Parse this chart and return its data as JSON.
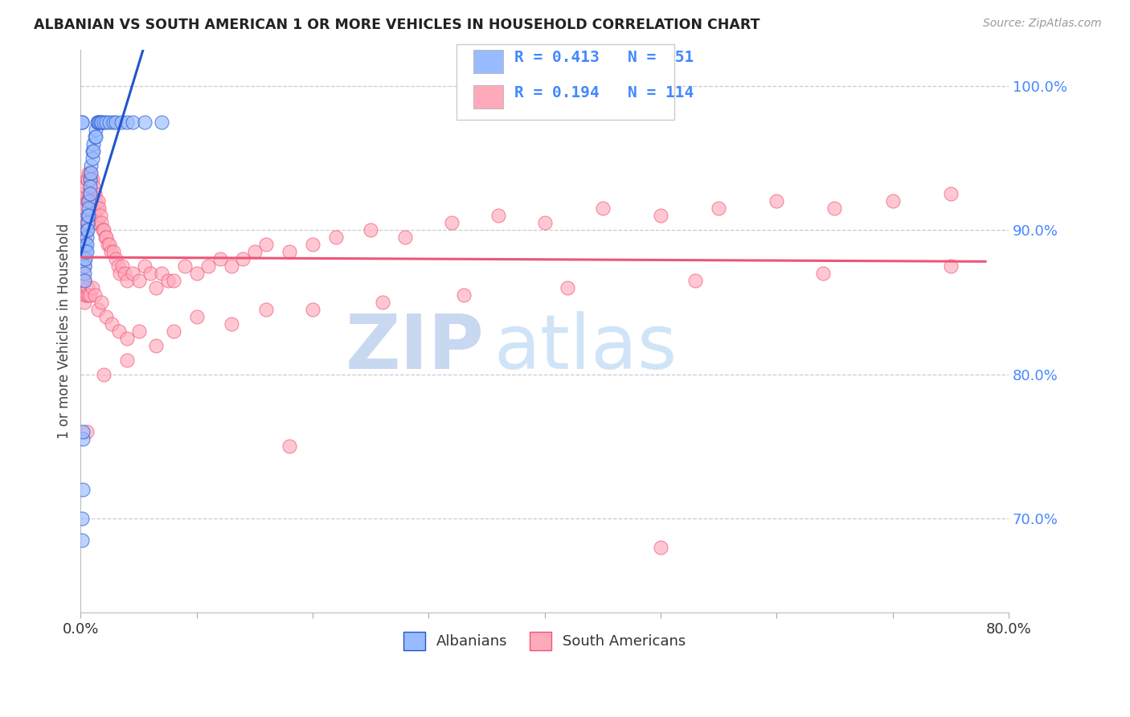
{
  "title": "ALBANIAN VS SOUTH AMERICAN 1 OR MORE VEHICLES IN HOUSEHOLD CORRELATION CHART",
  "source": "Source: ZipAtlas.com",
  "ylabel": "1 or more Vehicles in Household",
  "ytick_labels": [
    "100.0%",
    "90.0%",
    "80.0%",
    "70.0%"
  ],
  "ytick_values": [
    1.0,
    0.9,
    0.8,
    0.7
  ],
  "xlim": [
    0.0,
    0.8
  ],
  "ylim": [
    0.635,
    1.025
  ],
  "r_albanian": 0.413,
  "n_albanian": 51,
  "r_south_american": 0.194,
  "n_south_american": 114,
  "color_albanian": "#99BBFF",
  "color_south_american": "#FFAABB",
  "color_line_albanian": "#2255CC",
  "color_line_south_american": "#EE5577",
  "color_title": "#222222",
  "color_source": "#999999",
  "color_ytick": "#4488FF",
  "albanian_x": [
    0.001,
    0.001,
    0.002,
    0.002,
    0.002,
    0.003,
    0.003,
    0.003,
    0.003,
    0.004,
    0.004,
    0.004,
    0.005,
    0.005,
    0.005,
    0.005,
    0.006,
    0.006,
    0.006,
    0.007,
    0.007,
    0.007,
    0.008,
    0.008,
    0.008,
    0.009,
    0.009,
    0.01,
    0.01,
    0.011,
    0.011,
    0.012,
    0.013,
    0.013,
    0.014,
    0.015,
    0.016,
    0.017,
    0.018,
    0.02,
    0.022,
    0.025,
    0.028,
    0.03,
    0.035,
    0.04,
    0.045,
    0.055,
    0.07,
    0.001,
    0.001
  ],
  "albanian_y": [
    0.7,
    0.685,
    0.755,
    0.72,
    0.76,
    0.88,
    0.875,
    0.87,
    0.865,
    0.89,
    0.885,
    0.88,
    0.9,
    0.895,
    0.89,
    0.885,
    0.91,
    0.905,
    0.9,
    0.92,
    0.915,
    0.91,
    0.935,
    0.93,
    0.925,
    0.945,
    0.94,
    0.955,
    0.95,
    0.96,
    0.955,
    0.965,
    0.97,
    0.965,
    0.975,
    0.975,
    0.975,
    0.975,
    0.975,
    0.975,
    0.975,
    0.975,
    0.975,
    0.975,
    0.975,
    0.975,
    0.975,
    0.975,
    0.975,
    0.975,
    0.975
  ],
  "south_american_x": [
    0.001,
    0.001,
    0.002,
    0.002,
    0.002,
    0.003,
    0.003,
    0.003,
    0.003,
    0.004,
    0.004,
    0.004,
    0.005,
    0.005,
    0.005,
    0.006,
    0.006,
    0.007,
    0.007,
    0.008,
    0.008,
    0.009,
    0.009,
    0.01,
    0.01,
    0.011,
    0.011,
    0.012,
    0.012,
    0.013,
    0.013,
    0.014,
    0.015,
    0.015,
    0.016,
    0.017,
    0.018,
    0.019,
    0.02,
    0.021,
    0.022,
    0.023,
    0.025,
    0.026,
    0.028,
    0.03,
    0.032,
    0.034,
    0.036,
    0.038,
    0.04,
    0.045,
    0.05,
    0.055,
    0.06,
    0.065,
    0.07,
    0.075,
    0.08,
    0.09,
    0.1,
    0.11,
    0.12,
    0.13,
    0.14,
    0.15,
    0.16,
    0.18,
    0.2,
    0.22,
    0.25,
    0.28,
    0.32,
    0.36,
    0.4,
    0.45,
    0.5,
    0.55,
    0.6,
    0.65,
    0.7,
    0.75,
    0.003,
    0.003,
    0.004,
    0.005,
    0.006,
    0.007,
    0.008,
    0.01,
    0.012,
    0.015,
    0.018,
    0.022,
    0.027,
    0.033,
    0.04,
    0.05,
    0.065,
    0.08,
    0.1,
    0.13,
    0.16,
    0.2,
    0.26,
    0.33,
    0.42,
    0.53,
    0.64,
    0.75,
    0.005,
    0.02,
    0.04,
    0.18,
    0.5
  ],
  "south_american_y": [
    0.88,
    0.865,
    0.9,
    0.885,
    0.87,
    0.925,
    0.91,
    0.895,
    0.875,
    0.93,
    0.915,
    0.9,
    0.935,
    0.92,
    0.905,
    0.935,
    0.92,
    0.94,
    0.925,
    0.94,
    0.925,
    0.935,
    0.92,
    0.935,
    0.92,
    0.93,
    0.915,
    0.925,
    0.91,
    0.92,
    0.905,
    0.915,
    0.92,
    0.905,
    0.915,
    0.91,
    0.905,
    0.9,
    0.9,
    0.895,
    0.895,
    0.89,
    0.89,
    0.885,
    0.885,
    0.88,
    0.875,
    0.87,
    0.875,
    0.87,
    0.865,
    0.87,
    0.865,
    0.875,
    0.87,
    0.86,
    0.87,
    0.865,
    0.865,
    0.875,
    0.87,
    0.875,
    0.88,
    0.875,
    0.88,
    0.885,
    0.89,
    0.885,
    0.89,
    0.895,
    0.9,
    0.895,
    0.905,
    0.91,
    0.905,
    0.915,
    0.91,
    0.915,
    0.92,
    0.915,
    0.92,
    0.925,
    0.865,
    0.85,
    0.855,
    0.855,
    0.86,
    0.855,
    0.855,
    0.86,
    0.855,
    0.845,
    0.85,
    0.84,
    0.835,
    0.83,
    0.825,
    0.83,
    0.82,
    0.83,
    0.84,
    0.835,
    0.845,
    0.845,
    0.85,
    0.855,
    0.86,
    0.865,
    0.87,
    0.875,
    0.76,
    0.8,
    0.81,
    0.75,
    0.68
  ],
  "legend_box_color": "#DDDDDD",
  "watermark_zip_color": "#C8D8F0",
  "watermark_atlas_color": "#D0E4F8"
}
